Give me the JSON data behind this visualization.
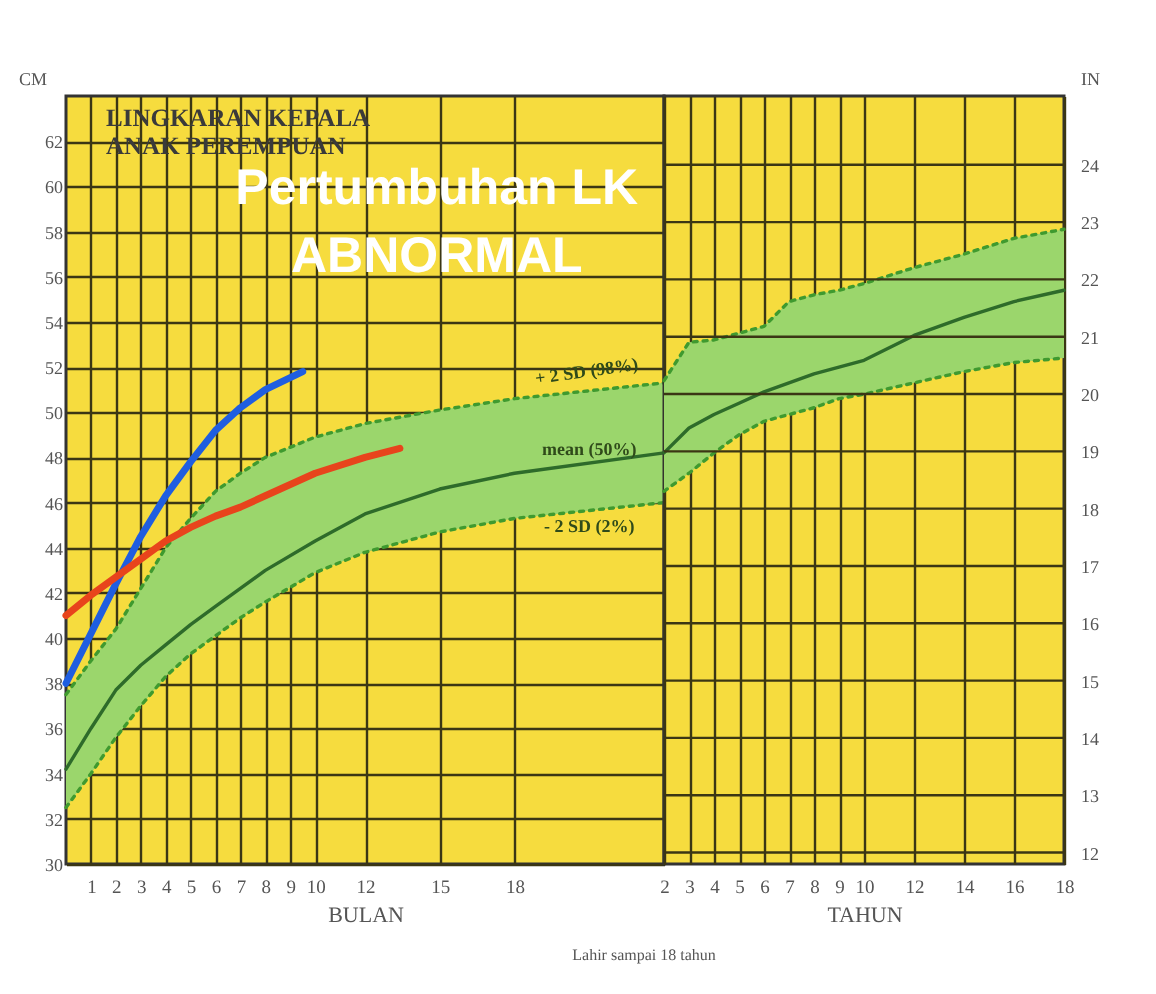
{
  "chart_data": [
    {
      "type": "line",
      "title": "LINGKARAN KEPALA ANAK PEREMPUAN",
      "xlabel": "BULAN",
      "ylabel": "CM",
      "xlim": [
        0,
        24
      ],
      "xticks": [
        1,
        2,
        3,
        4,
        5,
        6,
        7,
        8,
        9,
        10,
        12,
        15,
        18
      ],
      "ylim": [
        30,
        64
      ],
      "yticks": [
        30,
        32,
        34,
        36,
        38,
        40,
        42,
        44,
        46,
        48,
        50,
        52,
        54,
        56,
        58,
        60,
        62
      ],
      "grid": true,
      "series": [
        {
          "name": "+ 2 SD (98%)",
          "color": "#3f9a2f",
          "line_style": "dotted",
          "x": [
            0,
            1,
            2,
            3,
            4,
            5,
            6,
            7,
            8,
            10,
            12,
            15,
            18,
            24
          ],
          "values": [
            37.5,
            39,
            40.4,
            42.2,
            44,
            45.3,
            46.5,
            47.3,
            48,
            48.9,
            49.5,
            50.1,
            50.6,
            51.3
          ]
        },
        {
          "name": "mean (50%)",
          "color": "#2e6b2a",
          "x": [
            0,
            1,
            2,
            3,
            4,
            5,
            6,
            7,
            8,
            10,
            12,
            15,
            18,
            24
          ],
          "values": [
            34.2,
            36,
            37.7,
            38.8,
            39.7,
            40.6,
            41.4,
            42.2,
            43,
            44.3,
            45.5,
            46.6,
            47.3,
            48.2
          ],
          "lower": [
            32.5,
            34,
            35.6,
            37,
            38.3,
            39.3,
            40.1,
            40.9,
            41.6,
            42.9,
            43.8,
            44.7,
            45.3,
            46
          ],
          "upper": [
            37.5,
            39,
            40.4,
            42.2,
            44,
            45.3,
            46.5,
            47.3,
            48,
            48.9,
            49.5,
            50.1,
            50.6,
            51.3
          ]
        },
        {
          "name": "- 2 SD (2%)",
          "color": "#3f9a2f",
          "line_style": "dotted",
          "x": [
            0,
            1,
            2,
            3,
            4,
            5,
            6,
            7,
            8,
            10,
            12,
            15,
            18,
            24
          ],
          "values": [
            32.5,
            34,
            35.6,
            37,
            38.3,
            39.3,
            40.1,
            40.9,
            41.6,
            42.9,
            43.8,
            44.7,
            45.3,
            46
          ]
        },
        {
          "color": "#1f5ee0",
          "x": [
            0,
            1,
            2,
            3,
            4,
            5,
            6,
            7,
            8,
            9.5
          ],
          "values": [
            38,
            40.2,
            42.4,
            44.5,
            46.3,
            47.8,
            49.2,
            50.2,
            51,
            51.8
          ]
        },
        {
          "color": "#e8441c",
          "x": [
            0,
            1,
            2,
            3,
            4,
            5,
            6,
            7,
            8,
            10,
            12,
            13.4
          ],
          "values": [
            41,
            41.9,
            42.7,
            43.5,
            44.3,
            44.9,
            45.4,
            45.8,
            46.3,
            47.3,
            48,
            48.4
          ]
        }
      ],
      "annotations": [
        "Pertumbuhan LK ABNORMAL",
        "Lahir sampai 18 tahun"
      ]
    },
    {
      "type": "line",
      "xlabel": "TAHUN",
      "y2label": "IN",
      "xlim": [
        2,
        18
      ],
      "xticks": [
        2,
        3,
        4,
        5,
        6,
        7,
        8,
        9,
        10,
        12,
        14,
        16,
        18
      ],
      "ylim": [
        30,
        64
      ],
      "y2lim": [
        11.8,
        25.2
      ],
      "y2ticks": [
        12,
        13,
        14,
        15,
        16,
        17,
        18,
        19,
        20,
        21,
        22,
        23,
        24
      ],
      "grid": true,
      "series": [
        {
          "color": "#3f9a2f",
          "line_style": "dotted",
          "x": [
            2,
            3,
            4,
            5,
            6,
            7,
            8,
            9,
            10,
            12,
            14,
            16,
            18
          ],
          "values": [
            51.4,
            53.1,
            53.2,
            53.5,
            53.8,
            54.9,
            55.2,
            55.4,
            55.7,
            56.4,
            57,
            57.7,
            58.1
          ]
        },
        {
          "color": "#2e6b2a",
          "x": [
            2,
            3,
            4,
            5,
            6,
            7,
            8,
            9,
            10,
            12,
            14,
            16,
            18
          ],
          "values": [
            48.2,
            49.3,
            49.9,
            50.4,
            50.9,
            51.3,
            51.7,
            52,
            52.3,
            53.4,
            54.2,
            54.9,
            55.4
          ],
          "lower": [
            46.5,
            47.3,
            48.2,
            49,
            49.6,
            49.9,
            50.2,
            50.6,
            50.8,
            51.3,
            51.8,
            52.2,
            52.4
          ],
          "upper": [
            51.4,
            53.1,
            53.2,
            53.5,
            53.8,
            54.9,
            55.2,
            55.4,
            55.7,
            56.4,
            57,
            57.7,
            58.1
          ]
        },
        {
          "color": "#3f9a2f",
          "line_style": "dotted",
          "x": [
            2,
            3,
            4,
            5,
            6,
            7,
            8,
            9,
            10,
            12,
            14,
            16,
            18
          ],
          "values": [
            46.5,
            47.3,
            48.2,
            49,
            49.6,
            49.9,
            50.2,
            50.6,
            50.8,
            51.3,
            51.8,
            52.2,
            52.4
          ]
        }
      ]
    }
  ]
}
